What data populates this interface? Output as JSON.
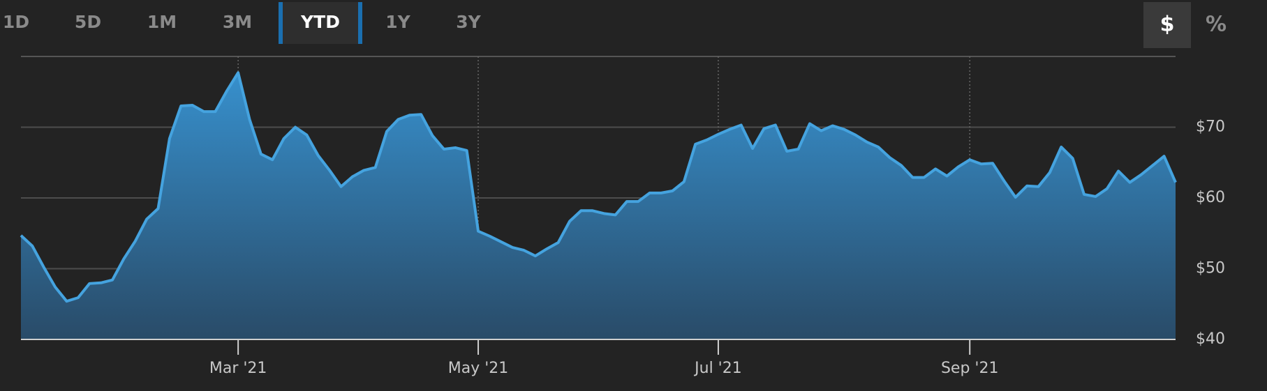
{
  "range_buttons": [
    {
      "label": "1D",
      "selected": false
    },
    {
      "label": "5D",
      "selected": false
    },
    {
      "label": "1M",
      "selected": false
    },
    {
      "label": "3M",
      "selected": false
    },
    {
      "label": "YTD",
      "selected": true
    },
    {
      "label": "1Y",
      "selected": false
    },
    {
      "label": "3Y",
      "selected": false
    }
  ],
  "unit_buttons": [
    {
      "label": "$",
      "selected": true
    },
    {
      "label": "%",
      "selected": false
    }
  ],
  "chart_data": {
    "type": "area",
    "color": "#45a3df",
    "categories": [
      null,
      null,
      null,
      null,
      null,
      null,
      null,
      null,
      null,
      null,
      null,
      null,
      null,
      null,
      null,
      null,
      null,
      null,
      null,
      "Mar '21",
      null,
      null,
      null,
      null,
      null,
      null,
      null,
      null,
      null,
      null,
      null,
      null,
      null,
      null,
      null,
      null,
      null,
      null,
      null,
      null,
      "May '21",
      null,
      null,
      null,
      null,
      null,
      null,
      null,
      null,
      null,
      null,
      null,
      null,
      null,
      null,
      null,
      null,
      null,
      null,
      null,
      null,
      "Jul '21",
      null,
      null,
      null,
      null,
      null,
      null,
      null,
      null,
      null,
      null,
      null,
      null,
      null,
      null,
      null,
      null,
      null,
      null,
      null,
      null,
      null,
      "Sep '21",
      null,
      null,
      null,
      null,
      null,
      null,
      null,
      null,
      null,
      null,
      null,
      null,
      null,
      null,
      null,
      null,
      null,
      null
    ],
    "values": [
      54.7,
      53.2,
      50.2,
      47.4,
      45.4,
      45.9,
      47.9,
      48.0,
      48.4,
      51.4,
      53.9,
      57.0,
      58.5,
      68.4,
      73.0,
      73.1,
      72.2,
      72.2,
      75.1,
      77.7,
      71.1,
      66.2,
      65.4,
      68.4,
      70.0,
      68.9,
      66.0,
      63.9,
      61.6,
      63.0,
      63.9,
      64.3,
      69.4,
      71.1,
      71.7,
      71.8,
      68.8,
      66.9,
      67.1,
      66.7,
      55.3,
      54.6,
      53.8,
      53.0,
      52.6,
      51.8,
      52.8,
      53.7,
      56.7,
      58.2,
      58.2,
      57.8,
      57.6,
      59.5,
      59.5,
      60.7,
      60.7,
      61.0,
      62.3,
      67.6,
      68.2,
      69.0,
      69.7,
      70.3,
      67.0,
      69.8,
      70.3,
      66.6,
      66.9,
      70.5,
      69.5,
      70.2,
      69.7,
      68.9,
      67.9,
      67.2,
      65.7,
      64.6,
      62.9,
      62.9,
      64.1,
      63.1,
      64.4,
      65.4,
      64.8,
      64.9,
      62.4,
      60.1,
      61.7,
      61.6,
      63.6,
      67.2,
      65.6,
      60.5,
      60.2,
      61.3,
      63.8,
      62.2,
      63.3,
      64.6,
      65.9,
      62.2
    ],
    "ylim": [
      40,
      80
    ],
    "yticks": [
      {
        "value": 40,
        "label": "$40"
      },
      {
        "value": 50,
        "label": "$50"
      },
      {
        "value": 60,
        "label": "$60"
      },
      {
        "value": 70,
        "label": "$70"
      }
    ],
    "grid": true
  }
}
